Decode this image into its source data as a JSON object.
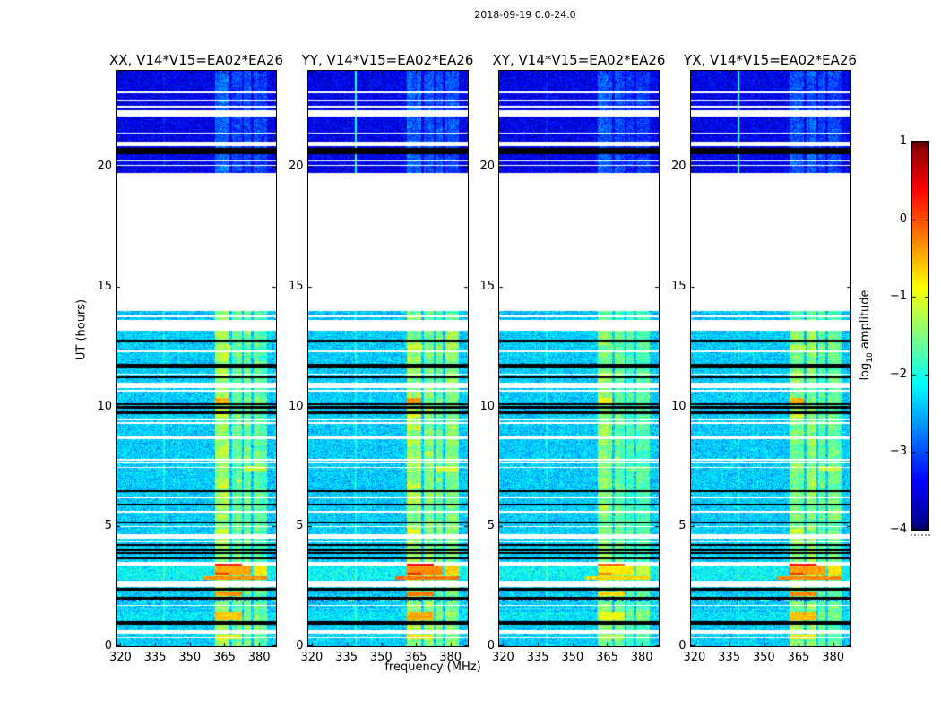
{
  "figure": {
    "background": "#ffffff",
    "frame_color": "#000000"
  },
  "chart_data": {
    "type": "heatmap",
    "title": "2018-09-19 0.0-24.0",
    "xlabel": "frequency (MHz)",
    "ylabel": "UT (hours)",
    "colorbar_label": {
      "pre": "log",
      "sub": "10",
      "post": " amplitude"
    },
    "colormap": "jet",
    "x_range": [
      318.3,
      387.3
    ],
    "y_range": [
      0,
      24
    ],
    "x_ticks": [
      320,
      335,
      350,
      365,
      380
    ],
    "y_ticks": [
      0,
      5,
      10,
      15,
      20
    ],
    "colorbar": {
      "range": [
        -4,
        1
      ],
      "ticks": [
        1,
        0,
        -1,
        -2,
        -3,
        -4
      ],
      "tick_labels": [
        "1",
        "0",
        "−1",
        "−2",
        "−3",
        "−4"
      ]
    },
    "panels": [
      {
        "id": "XX",
        "label": "XX, V14*V15=EA02*EA26",
        "seed": 101,
        "rfi_scale": 1.0,
        "hot_shift": 0
      },
      {
        "id": "YY",
        "label": "YY, V14*V15=EA02*EA26",
        "seed": 202,
        "rfi_scale": 1.07,
        "hot_shift": 0.15
      },
      {
        "id": "XY",
        "label": "XY, V14*V15=EA02*EA26",
        "seed": 303,
        "rfi_scale": 0.88,
        "hot_shift": -0.35
      },
      {
        "id": "YX",
        "label": "YX, V14*V15=EA02*EA26",
        "seed": 404,
        "rfi_scale": 1.0,
        "hot_shift": 0.05
      }
    ],
    "segments": [
      {
        "t": [
          19.75,
          24.0
        ],
        "base": -3.45,
        "rfi_factor": 0.55
      },
      {
        "t": [
          13.6,
          13.97
        ],
        "base": -2.5,
        "rfi_factor": 0.9
      },
      {
        "t": [
          0.0,
          13.17
        ],
        "base": -2.35,
        "rfi_factor": 1.0
      }
    ],
    "rfi_bands": [
      {
        "f": [
          360.8,
          367.2
        ],
        "boost": 1.35
      },
      {
        "f": [
          368.2,
          372.6
        ],
        "boost": 1.15
      },
      {
        "f": [
          373.3,
          376.4
        ],
        "boost": 1.05
      },
      {
        "f": [
          377.8,
          383.4
        ],
        "boost": 1.0
      },
      {
        "f": [
          338.4,
          339.2
        ],
        "boost": 0.45
      },
      {
        "f": [
          344.9,
          345.5
        ],
        "boost": 0.3
      }
    ],
    "white_gaps": [
      [
        13.97,
        19.75
      ],
      [
        22.1,
        22.37
      ],
      [
        20.85,
        21.06
      ],
      [
        13.17,
        13.6
      ],
      [
        10.78,
        11.0
      ],
      [
        8.64,
        8.76
      ],
      [
        4.5,
        4.66
      ],
      [
        3.355,
        3.46
      ],
      [
        2.45,
        2.72
      ],
      [
        0.52,
        0.68
      ]
    ],
    "white_lines": [
      23.1,
      22.74,
      22.5,
      21.4,
      20.25,
      20.05,
      13.76,
      12.3,
      11.35,
      10.66,
      9.46,
      9.31,
      7.77,
      7.66,
      7.45,
      6.2,
      5.61,
      5.0,
      4.35,
      3.48,
      1.7,
      1.55,
      0.35
    ],
    "black_rows": [
      [
        20.53,
        20.78
      ],
      [
        12.67,
        12.8
      ],
      [
        11.59,
        11.79
      ],
      [
        11.17,
        11.26
      ],
      [
        10.05,
        10.14
      ],
      [
        9.9,
        10.02
      ],
      [
        9.69,
        9.81
      ],
      [
        6.42,
        6.52
      ],
      [
        5.86,
        5.94
      ],
      [
        5.12,
        5.2
      ],
      [
        4.17,
        4.26
      ],
      [
        3.98,
        4.07
      ],
      [
        3.85,
        3.93
      ],
      [
        3.62,
        3.7
      ],
      [
        2.3,
        2.42
      ],
      [
        1.95,
        2.07
      ],
      [
        0.9,
        1.06
      ]
    ],
    "bright_rows": [
      [
        2.78,
        3.47,
        0.25
      ],
      [
        1.08,
        1.42,
        0.15
      ],
      [
        13.6,
        13.97,
        0.1
      ]
    ],
    "noisy_rows": [
      [
        1.86,
        1.95
      ]
    ],
    "hotspots": [
      {
        "t": [
          2.95,
          3.47
        ],
        "f": [
          360.8,
          376.4
        ],
        "v": -0.45
      },
      {
        "t": [
          2.95,
          3.47
        ],
        "f": [
          377.8,
          383.4
        ],
        "v": -0.8
      },
      {
        "t": [
          3.36,
          3.45
        ],
        "f": [
          360.8,
          372.6
        ],
        "v": 0.25,
        "over": true
      },
      {
        "t": [
          2.97,
          3.06
        ],
        "f": [
          360.8,
          367.2
        ],
        "v": 0.1
      },
      {
        "t": [
          2.78,
          2.93
        ],
        "f": [
          356.0,
          383.4
        ],
        "v": -0.35
      },
      {
        "t": [
          2.08,
          2.28
        ],
        "f": [
          360.8,
          372.6
        ],
        "v": -0.35
      },
      {
        "t": [
          1.08,
          1.42
        ],
        "f": [
          360.8,
          372.6
        ],
        "v": -0.6
      },
      {
        "t": [
          10.1,
          10.35
        ],
        "f": [
          361.0,
          367.2
        ],
        "v": -0.5
      },
      {
        "t": [
          9.55,
          9.7
        ],
        "f": [
          360.8,
          367.2
        ],
        "v": -1.1
      },
      {
        "t": [
          12.3,
          12.55
        ],
        "f": [
          360.8,
          368.0
        ],
        "v": -1.3
      },
      {
        "t": [
          4.7,
          4.9
        ],
        "f": [
          360.8,
          367.2
        ],
        "v": -1.1
      },
      {
        "t": [
          0.3,
          0.5
        ],
        "f": [
          360.8,
          372.6
        ],
        "v": -0.9
      },
      {
        "t": [
          7.3,
          7.5
        ],
        "f": [
          373.3,
          383.4
        ],
        "v": -1.2
      }
    ],
    "vlines": [
      {
        "f": [
          338.5,
          339.1
        ],
        "t": [
          19.75,
          24.0
        ],
        "v": -2.0,
        "panels": [
          1,
          3
        ]
      }
    ]
  }
}
